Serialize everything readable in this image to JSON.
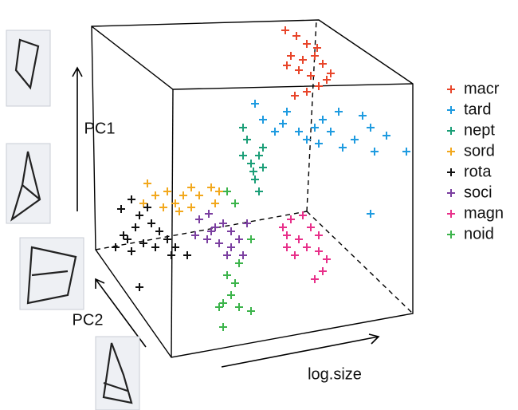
{
  "chart_data": {
    "type": "scatter3d",
    "x_label": "log.size",
    "y_label": "PC1",
    "z_label": "PC2",
    "xlim": [
      0,
      430
    ],
    "ylim": [
      0,
      440
    ],
    "series": [
      {
        "name": "macr",
        "color": "#e8452a",
        "x": [
          258,
          272,
          285,
          265,
          280,
          295,
          305,
          275,
          290,
          310,
          300,
          285,
          270,
          298,
          315,
          260
        ],
        "values": [
          422,
          415,
          405,
          390,
          385,
          390,
          380,
          372,
          365,
          360,
          352,
          345,
          340,
          400,
          368,
          378
        ]
      },
      {
        "name": "tard",
        "color": "#1e9be0",
        "x": [
          220,
          230,
          245,
          255,
          275,
          285,
          295,
          305,
          315,
          325,
          330,
          345,
          355,
          365,
          370,
          385,
          410,
          365,
          300,
          260
        ],
        "values": [
          330,
          310,
          295,
          305,
          295,
          285,
          300,
          310,
          295,
          320,
          275,
          285,
          315,
          300,
          270,
          290,
          270,
          192,
          280,
          320
        ]
      },
      {
        "name": "nept",
        "color": "#1a9e77",
        "x": [
          205,
          210,
          205,
          215,
          225,
          230,
          220,
          225,
          230,
          218
        ],
        "values": [
          300,
          285,
          265,
          255,
          265,
          250,
          235,
          220,
          275,
          245
        ]
      },
      {
        "name": "sord",
        "color": "#f2a81d",
        "x": [
          85,
          95,
          110,
          120,
          130,
          140,
          150,
          165,
          175,
          170,
          125,
          105,
          80,
          140
        ],
        "values": [
          230,
          215,
          220,
          205,
          215,
          225,
          215,
          225,
          220,
          205,
          195,
          200,
          205,
          200
        ]
      },
      {
        "name": "rota",
        "color": "#111111",
        "x": [
          52,
          65,
          75,
          85,
          90,
          70,
          55,
          45,
          65,
          80,
          100,
          110,
          120,
          135,
          115,
          95,
          75,
          60
        ],
        "values": [
          198,
          210,
          190,
          200,
          180,
          175,
          165,
          150,
          145,
          155,
          170,
          160,
          150,
          140,
          140,
          150,
          100,
          160
        ]
      },
      {
        "name": "soci",
        "color": "#7b3fa0",
        "x": [
          150,
          162,
          170,
          180,
          190,
          160,
          175,
          190,
          200,
          205,
          185,
          145,
          210,
          165
        ],
        "values": [
          185,
          192,
          175,
          180,
          170,
          160,
          155,
          150,
          160,
          140,
          140,
          165,
          180,
          170
        ]
      },
      {
        "name": "magn",
        "color": "#e8308a",
        "x": [
          255,
          265,
          280,
          290,
          300,
          275,
          260,
          285,
          300,
          310,
          305,
          295,
          270,
          260
        ],
        "values": [
          175,
          185,
          190,
          175,
          165,
          160,
          150,
          150,
          145,
          135,
          120,
          110,
          140,
          165
        ]
      },
      {
        "name": "noid",
        "color": "#3cb44b",
        "x": [
          185,
          195,
          215,
          200,
          195,
          190,
          180,
          175,
          200,
          215,
          185,
          180
        ],
        "values": [
          220,
          205,
          160,
          130,
          105,
          90,
          80,
          75,
          75,
          70,
          115,
          50
        ]
      }
    ]
  }
}
